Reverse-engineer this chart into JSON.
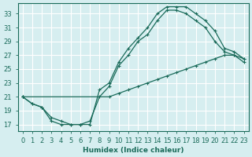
{
  "title": "",
  "xlabel": "Humidex (Indice chaleur)",
  "ylabel": "",
  "bg_color": "#d6eef0",
  "grid_color": "#ffffff",
  "line_color": "#1a6b5a",
  "xlim": [
    -0.5,
    23.5
  ],
  "ylim": [
    16,
    34.5
  ],
  "xticks": [
    0,
    1,
    2,
    3,
    4,
    5,
    6,
    7,
    8,
    9,
    10,
    11,
    12,
    13,
    14,
    15,
    16,
    17,
    18,
    19,
    20,
    21,
    22,
    23
  ],
  "yticks": [
    17,
    19,
    21,
    23,
    25,
    27,
    29,
    31,
    33
  ],
  "line1": {
    "x": [
      0,
      1,
      2,
      3,
      4,
      5,
      6,
      7,
      8,
      9,
      10,
      11,
      12,
      13,
      14,
      15,
      16,
      17,
      18,
      19,
      20,
      21,
      22,
      23
    ],
    "y": [
      21,
      20,
      19.5,
      18,
      17.5,
      17,
      17,
      17,
      22,
      23,
      26,
      28,
      29.5,
      31,
      33,
      34,
      34,
      34,
      33,
      32,
      30.5,
      28,
      27.5,
      26.5
    ]
  },
  "line2": {
    "x": [
      0,
      1,
      2,
      3,
      4,
      5,
      6,
      7,
      8,
      9,
      10,
      11,
      12,
      13,
      14,
      15,
      16,
      17,
      18,
      19,
      20,
      21,
      22,
      23
    ],
    "y": [
      21,
      20,
      19.5,
      17.5,
      17,
      17,
      17,
      17.5,
      21,
      22.5,
      25.5,
      27,
      29,
      30,
      32,
      33.5,
      33.5,
      33,
      32,
      31,
      29,
      27.5,
      27,
      26
    ]
  },
  "line3": {
    "x": [
      0,
      9,
      10,
      11,
      12,
      13,
      14,
      15,
      16,
      17,
      18,
      19,
      20,
      21,
      22,
      23
    ],
    "y": [
      21,
      21,
      21.5,
      22,
      22.5,
      23,
      23.5,
      24,
      24.5,
      25,
      25.5,
      26,
      26.5,
      27,
      27,
      26.5
    ]
  }
}
